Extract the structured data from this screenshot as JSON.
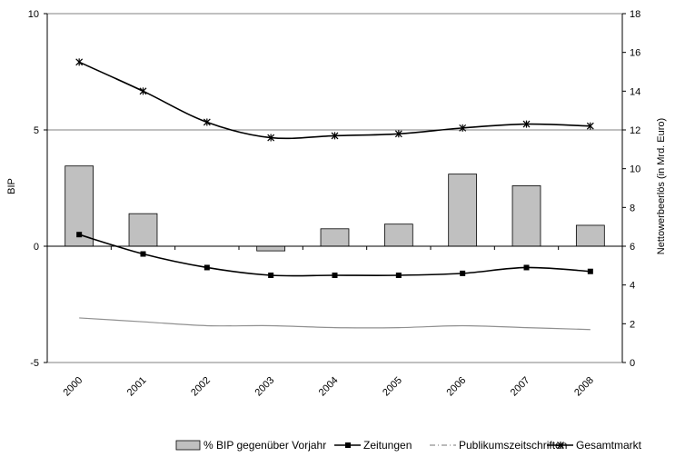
{
  "chart_data": {
    "type": "bar+line",
    "categories": [
      "2000",
      "2001",
      "2002",
      "2003",
      "2004",
      "2005",
      "2006",
      "2007",
      "2008"
    ],
    "left_axis": {
      "label": "BIP",
      "min": -5,
      "max": 10,
      "ticks": [
        "10",
        "5",
        "0",
        "-5"
      ]
    },
    "right_axis": {
      "label": "Nettowerbeerlös (in Mrd. Euro)",
      "min": 0,
      "max": 18,
      "ticks": [
        "18",
        "16",
        "14",
        "12",
        "10",
        "8",
        "6",
        "4",
        "2",
        "0"
      ]
    },
    "series": [
      {
        "name": "% BIP gegenüber Vorjahr",
        "kind": "bar",
        "axis": "left",
        "color": "#c0c0c0",
        "values": [
          3.45,
          1.4,
          0.0,
          -0.2,
          0.75,
          0.95,
          3.1,
          2.6,
          0.9
        ]
      },
      {
        "name": "Zeitungen",
        "kind": "line",
        "axis": "right",
        "marker": "square",
        "color": "#000000",
        "values": [
          6.6,
          5.6,
          4.9,
          4.5,
          4.5,
          4.5,
          4.6,
          4.9,
          4.7
        ]
      },
      {
        "name": "Publikumszeitschriften",
        "kind": "line",
        "axis": "right",
        "marker": "none",
        "color": "#909090",
        "values": [
          2.3,
          2.1,
          1.9,
          1.9,
          1.8,
          1.8,
          1.9,
          1.8,
          1.7
        ]
      },
      {
        "name": "Gesamtmarkt",
        "kind": "line",
        "axis": "right",
        "marker": "asterisk",
        "color": "#000000",
        "values": [
          15.5,
          14.0,
          12.4,
          11.6,
          11.7,
          11.8,
          12.1,
          12.3,
          12.2
        ]
      }
    ],
    "gridlines": "horizontal at left-axis ticks",
    "legend_position": "bottom"
  }
}
